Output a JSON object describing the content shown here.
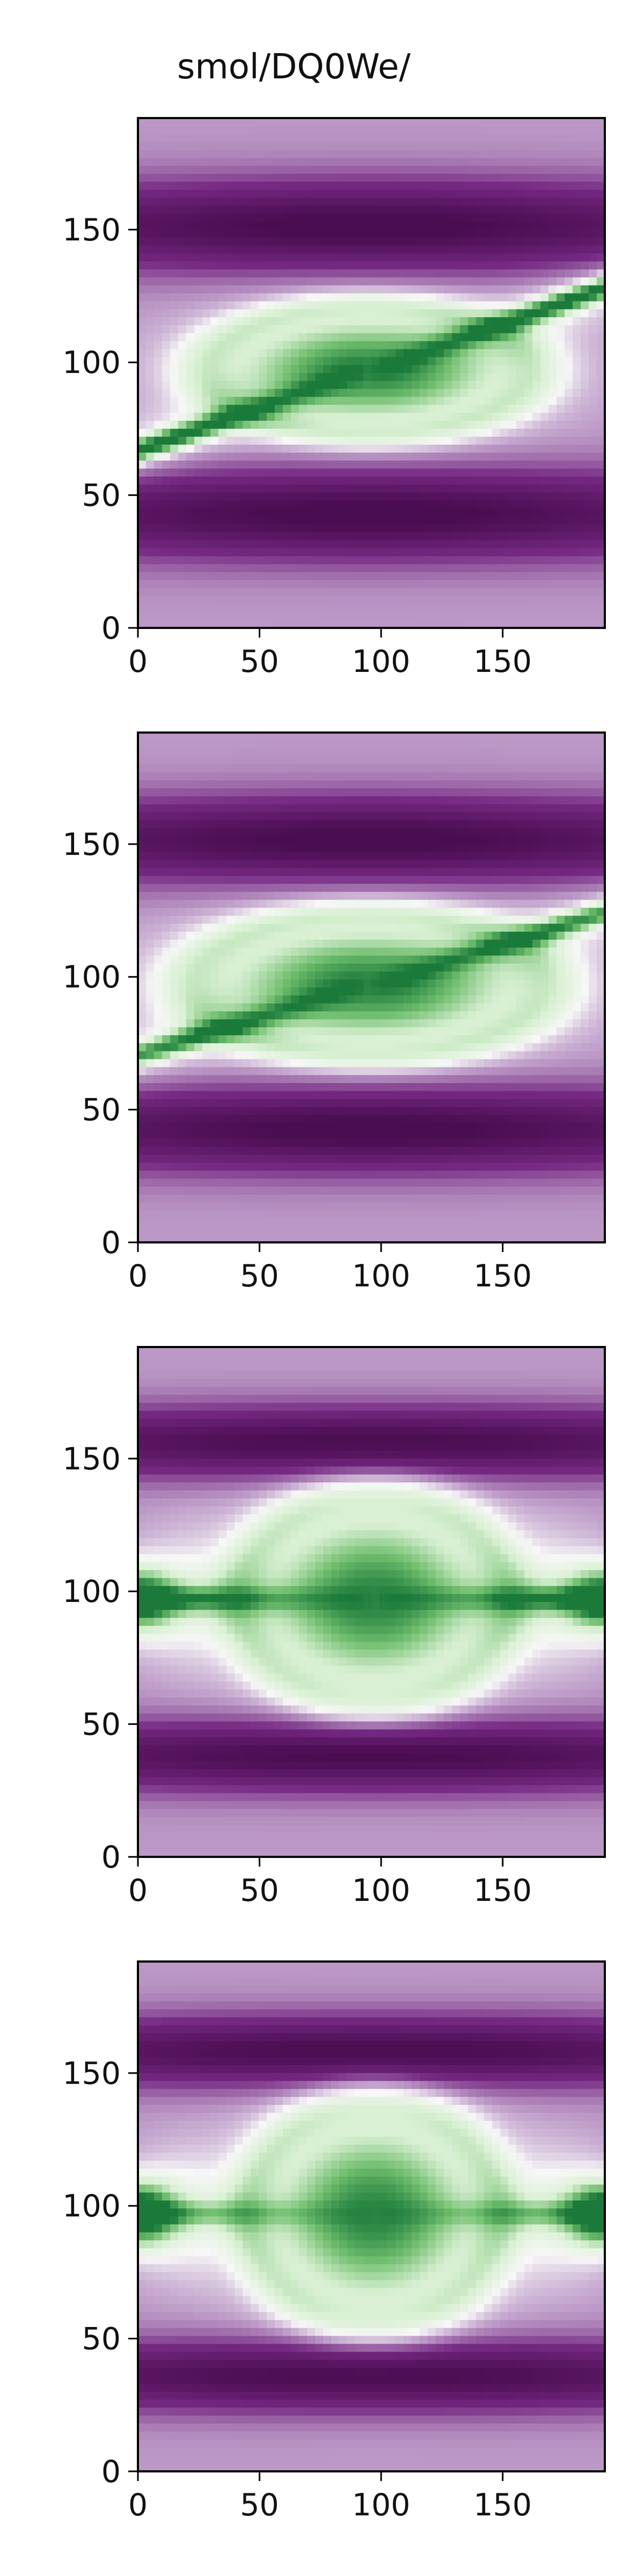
{
  "figure": {
    "title": "smol/DQ0We/"
  },
  "colors": {
    "dark_purple": "#4b0d52",
    "light_purple": "#c5a8cf",
    "white": "#f7f7f7",
    "light_green": "#d9f0d3",
    "dark_green": "#1b7a3a"
  },
  "chart_data": [
    {
      "type": "heatmap",
      "title": "smol/DQ0We/",
      "xlabel": "",
      "ylabel": "",
      "xlim": [
        0,
        192
      ],
      "ylim": [
        0,
        192
      ],
      "xticks": [
        0,
        50,
        100,
        150
      ],
      "yticks": [
        0,
        50,
        100,
        150
      ],
      "grid": false,
      "colormap": "PRGn",
      "description_features": {
        "center": [
          95,
          97
        ],
        "core_rx": 55,
        "core_ry": 20,
        "band_width": 38,
        "strand_tilt": 0.32,
        "strand_sharpness": 1.0,
        "lobe": 0.0
      }
    },
    {
      "type": "heatmap",
      "title": "",
      "xlabel": "",
      "ylabel": "",
      "xlim": [
        0,
        192
      ],
      "ylim": [
        0,
        192
      ],
      "xticks": [
        0,
        50,
        100,
        150
      ],
      "yticks": [
        0,
        50,
        100,
        150
      ],
      "grid": false,
      "colormap": "PRGn",
      "description_features": {
        "center": [
          95,
          97
        ],
        "core_rx": 60,
        "core_ry": 22,
        "band_width": 36,
        "strand_tilt": 0.28,
        "strand_sharpness": 0.8,
        "lobe": 0.0
      }
    },
    {
      "type": "heatmap",
      "title": "",
      "xlabel": "",
      "ylabel": "",
      "xlim": [
        0,
        192
      ],
      "ylim": [
        0,
        192
      ],
      "xticks": [
        0,
        50,
        100,
        150
      ],
      "yticks": [
        0,
        50,
        100,
        150
      ],
      "grid": false,
      "colormap": "PRGn",
      "description_features": {
        "center": [
          97,
          97
        ],
        "core_rx": 45,
        "core_ry": 32,
        "band_width": 30,
        "strand_tilt": 0.0,
        "strand_sharpness": 0.6,
        "lobe": 0.85
      }
    },
    {
      "type": "heatmap",
      "title": "",
      "xlabel": "",
      "ylabel": "",
      "xlim": [
        0,
        192
      ],
      "ylim": [
        0,
        192
      ],
      "xticks": [
        0,
        50,
        100,
        150
      ],
      "yticks": [
        0,
        50,
        100,
        150
      ],
      "grid": false,
      "colormap": "PRGn",
      "description_features": {
        "center": [
          97,
          97
        ],
        "core_rx": 42,
        "core_ry": 34,
        "band_width": 30,
        "strand_tilt": 0.0,
        "strand_sharpness": 0.4,
        "lobe": 1.0
      }
    }
  ]
}
